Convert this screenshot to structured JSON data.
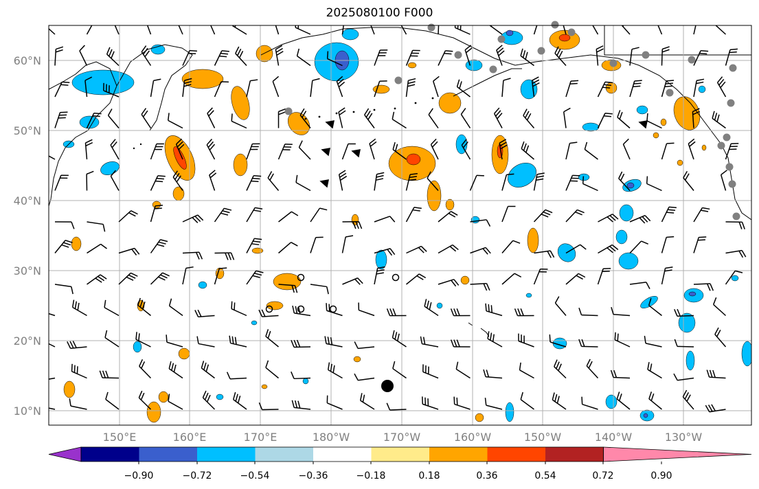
{
  "title": "2025080100 F000",
  "map": {
    "lat_labels": [
      "60°N",
      "50°N",
      "40°N",
      "30°N",
      "20°N",
      "10°N"
    ],
    "lon_labels": [
      "150°E",
      "160°E",
      "170°E",
      "180°W",
      "170°W",
      "160°W",
      "150°W",
      "140°W",
      "130°W"
    ],
    "label_color": "#808080"
  },
  "colorbar": {
    "tick_labels": [
      "−0.90",
      "−0.72",
      "−0.54",
      "−0.36",
      "−0.18",
      "0.18",
      "0.36",
      "0.54",
      "0.72",
      "0.90"
    ],
    "colors": [
      "#9932cc",
      "#00008b",
      "#3a5fcd",
      "#00bfff",
      "#add8e6",
      "#ffffff",
      "#ffeb8a",
      "#ffa500",
      "#ff4500",
      "#b22222",
      "#ff88aa"
    ]
  }
}
